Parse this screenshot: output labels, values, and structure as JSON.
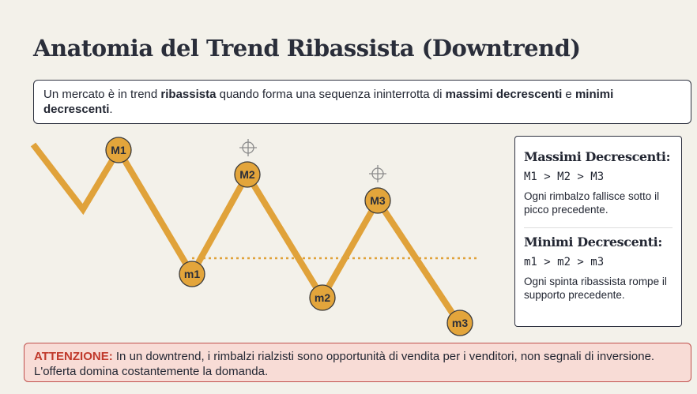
{
  "title": "Anatomia del Trend Ribassista (Downtrend)",
  "intro": [
    "Un mercato è in trend ",
    "ribassista",
    " quando forma una sequenza ininterrotta di ",
    "massimi decrescenti",
    " e ",
    "minimi decrescenti",
    "."
  ],
  "nodes": [
    {
      "label": "M1"
    },
    {
      "label": "m1"
    },
    {
      "label": "M2"
    },
    {
      "label": "m2"
    },
    {
      "label": "M3"
    },
    {
      "label": "m3"
    }
  ],
  "panel": {
    "highs": {
      "heading": "Massimi Decrescenti:",
      "rule": "M1 > M2 > M3",
      "text": "Ogni rimbalzo fallisce sotto il picco precedente."
    },
    "lows": {
      "heading": "Minimi Decrescenti:",
      "rule": "m1 > m2 > m3",
      "text": "Ogni spinta ribassista rompe il supporto precedente."
    }
  },
  "warning": {
    "label": "ATTENZIONE:",
    "text": " In un downtrend, i rimbalzi rialzisti sono opportunità di vendita per i venditori, non segnali di inversione. L'offerta domina costantemente la domanda."
  }
}
